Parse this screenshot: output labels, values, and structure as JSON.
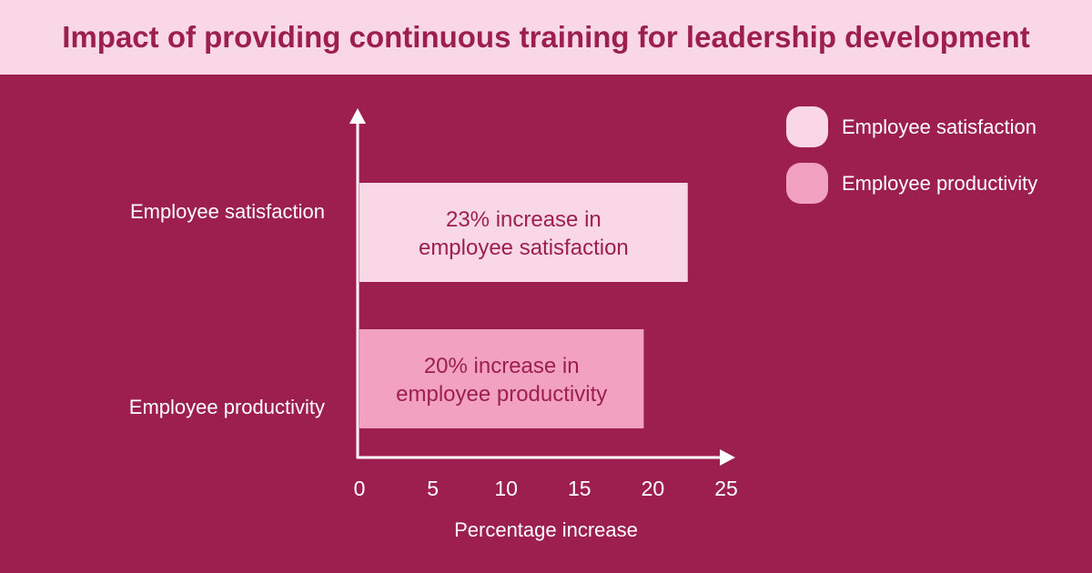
{
  "colors": {
    "background": "#9c1f50",
    "header": "#f9d7e4",
    "satisfaction": "#f9d7e4",
    "productivity": "#f2a2c0",
    "axis": "#ffffff"
  },
  "chart_data": {
    "type": "bar",
    "orientation": "horizontal",
    "title": "Impact of providing continuous training for leadership development",
    "categories": [
      "Employee satisfaction",
      "Employee productivity"
    ],
    "values": [
      23,
      20
    ],
    "data_labels": [
      "23% increase in\nemployee satisfaction",
      "20% increase in\nemployee productivity"
    ],
    "xlabel": "Percentage increase",
    "ylabel": "",
    "xlim": [
      0,
      25
    ],
    "xticks": [
      "0",
      "5",
      "10",
      "15",
      "20",
      "25"
    ],
    "grid": false,
    "legend": {
      "placement": "top-right",
      "entries": [
        "Employee satisfaction",
        "Employee productivity"
      ]
    }
  }
}
